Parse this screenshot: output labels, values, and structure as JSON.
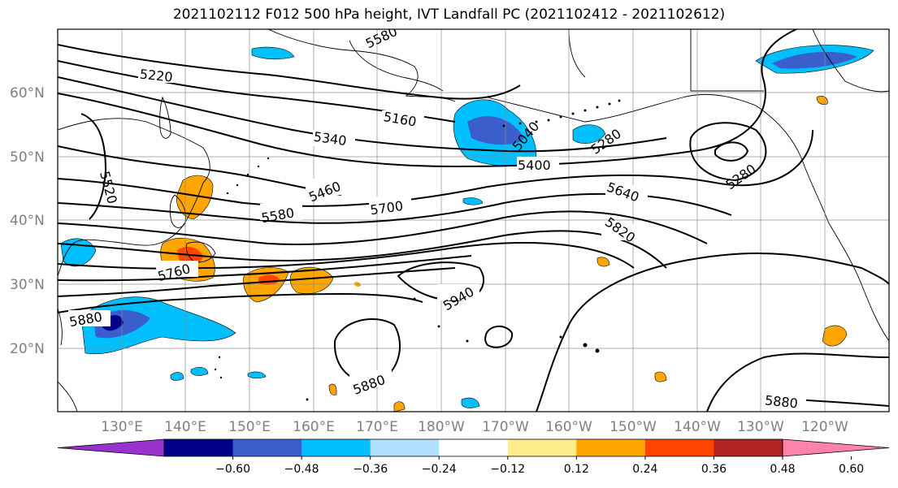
{
  "title": "2021102112 F012 500 hPa height, IVT Landfall PC (2021102412 - 2021102612)",
  "lat_labels": [
    "60°N",
    "50°N",
    "40°N",
    "30°N",
    "20°N"
  ],
  "lon_labels": [
    "130°E",
    "140°E",
    "150°E",
    "160°E",
    "170°E",
    "180°W",
    "170°W",
    "160°W",
    "150°W",
    "140°W",
    "130°W",
    "120°W"
  ],
  "colorbar": {
    "colors": [
      "#9932cc",
      "#00008b",
      "#3a5fcd",
      "#00bfff",
      "#b0e2ff",
      "#ffffff",
      "#ffec8b",
      "#ffa500",
      "#ff4500",
      "#b22222",
      "#ff82ab"
    ],
    "tick_labels": [
      "−0.60",
      "−0.48",
      "−0.36",
      "−0.24",
      "−0.12",
      "0.12",
      "0.24",
      "0.36",
      "0.48",
      "0.60"
    ]
  },
  "contour_labels": [
    "5220",
    "5160",
    "5040",
    "5280",
    "5340",
    "5400",
    "5280",
    "5460",
    "5520",
    "5580",
    "5700",
    "5640",
    "5820",
    "5760",
    "5940",
    "5880",
    "5880",
    "5880",
    "5580"
  ]
}
